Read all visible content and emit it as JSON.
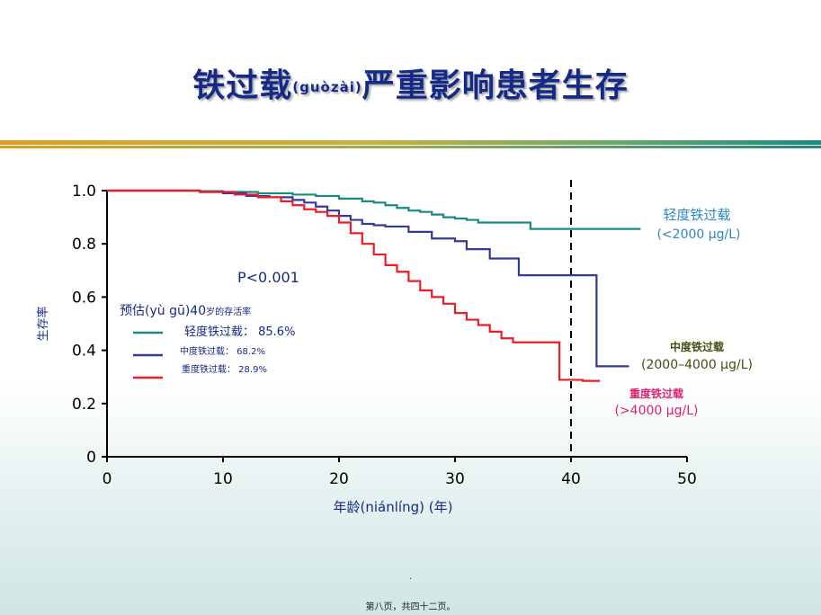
{
  "slide": {
    "title_main": "铁过载",
    "title_pinyin": "(guòzài)",
    "title_rest": "严重影响患者生存",
    "footer": "第八页，共四十二页。",
    "dot": "."
  },
  "colors": {
    "title": "#152a86",
    "mild": "#1a8a80",
    "moderate": "#343a9a",
    "severe": "#ee1c25",
    "mild_label": "#2a86c8",
    "moderate_label": "#4a4a10",
    "severe_label": "#e0206e"
  },
  "chart_data": {
    "type": "line",
    "step": true,
    "xlabel": "年龄(niánlíng) (年)",
    "ylabel": "生存率",
    "xlim": [
      0,
      50
    ],
    "ylim": [
      0,
      1.0
    ],
    "xticks": [
      "0",
      "10",
      "20",
      "30",
      "40",
      "50"
    ],
    "yticks": [
      "0",
      "0.2",
      "0.4",
      "0.6",
      "0.8",
      "1.0"
    ],
    "grid": false,
    "reference_line_x": 40,
    "pvalue": "P<0.001",
    "legend_title_a": "预估(yù gū)40",
    "legend_title_b": "岁的存活率",
    "legend": [
      {
        "label": "轻度铁过载： 85.6%",
        "series": "mild"
      },
      {
        "label": "中度铁过载： 68.2%",
        "series": "moderate"
      },
      {
        "label": "重度铁过载： 28.9%",
        "series": "severe"
      }
    ],
    "series": [
      {
        "key": "mild",
        "name": "轻度铁过载",
        "range": "(<2000 μg/L)",
        "x": [
          0,
          8,
          10,
          13,
          16,
          18,
          20,
          22,
          23,
          24,
          25,
          26,
          27,
          28,
          29,
          30,
          31,
          32,
          35,
          36.5,
          46
        ],
        "y": [
          1.0,
          0.998,
          0.995,
          0.99,
          0.985,
          0.98,
          0.97,
          0.96,
          0.955,
          0.945,
          0.935,
          0.925,
          0.92,
          0.91,
          0.9,
          0.895,
          0.89,
          0.88,
          0.88,
          0.856,
          0.856
        ]
      },
      {
        "key": "moderate",
        "name": "中度铁过载",
        "range": "(2000–4000 μg/L)",
        "x": [
          0,
          8,
          10,
          12,
          14,
          16,
          17,
          18,
          19,
          20,
          21,
          22,
          23,
          24,
          26,
          28,
          30,
          31,
          33,
          35.5,
          37,
          42.2,
          45
        ],
        "y": [
          1.0,
          0.995,
          0.99,
          0.98,
          0.975,
          0.965,
          0.955,
          0.94,
          0.925,
          0.905,
          0.89,
          0.875,
          0.87,
          0.865,
          0.845,
          0.82,
          0.81,
          0.78,
          0.745,
          0.682,
          0.682,
          0.34,
          0.34
        ]
      },
      {
        "key": "severe",
        "name": "重度铁过载",
        "range": "(>4000 μg/L)",
        "x": [
          0,
          8,
          11,
          13,
          15,
          16,
          17,
          18,
          19,
          20,
          21,
          22,
          23,
          24,
          25,
          26,
          27,
          28,
          29,
          30,
          31,
          32,
          33,
          34,
          35,
          36,
          37,
          38,
          39,
          41,
          42.5
        ],
        "y": [
          1.0,
          0.995,
          0.985,
          0.975,
          0.96,
          0.945,
          0.93,
          0.92,
          0.905,
          0.88,
          0.84,
          0.8,
          0.76,
          0.72,
          0.695,
          0.66,
          0.625,
          0.6,
          0.575,
          0.54,
          0.515,
          0.495,
          0.47,
          0.445,
          0.43,
          0.43,
          0.43,
          0.43,
          0.289,
          0.285,
          0.285
        ]
      }
    ]
  }
}
